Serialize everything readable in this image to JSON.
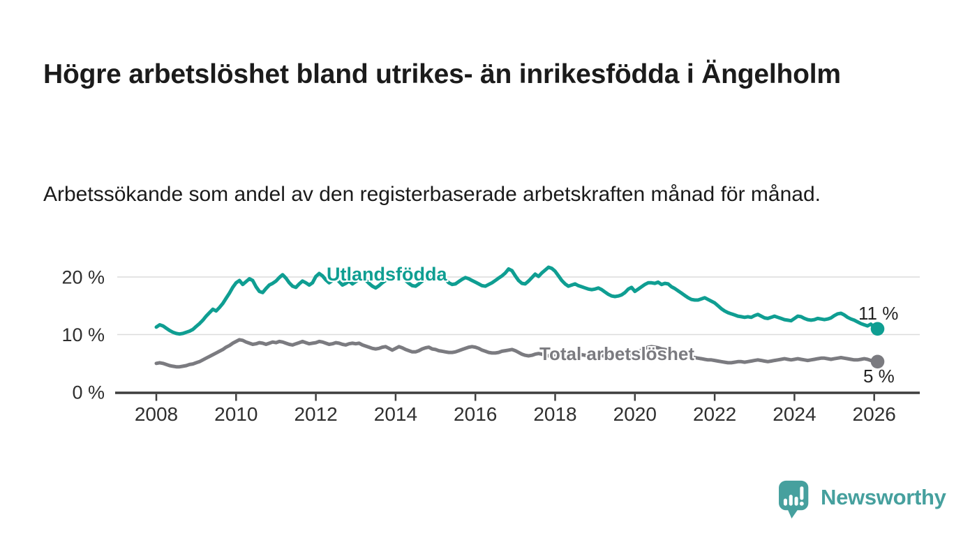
{
  "header": {
    "title": "Högre arbetslöshet bland utrikes- än inrikesfödda i Ängelholm",
    "subtitle": "Arbetssökande som andel av den registerbaserade arbetskraften månad för månad."
  },
  "footer": {
    "brand": "Newsworthy"
  },
  "colors": {
    "accent_teal": "#0f9e92",
    "series_gray": "#7b7b80",
    "logo_teal": "#46a09e",
    "title_text": "#1b1b1b",
    "axis": "#3d3d3d",
    "grid": "#dcdcdc",
    "tick_text": "#2f2f2f"
  },
  "chart_data": {
    "type": "line",
    "title": "Högre arbetslöshet bland utrikes- än inrikesfödda i Ängelholm",
    "subtitle": "Arbetssökande som andel av den registerbaserade arbetskraften månad för månad.",
    "x_unit": "month",
    "start": "2008-01",
    "end": "2026-02",
    "xlim": [
      2008,
      2026.17
    ],
    "ylim": [
      0,
      22.5
    ],
    "grid": "horizontal",
    "legend": "inline-labels",
    "x_ticks": [
      "2008",
      "2010",
      "2012",
      "2014",
      "2016",
      "2018",
      "2020",
      "2022",
      "2024",
      "2026"
    ],
    "y_ticks": [
      {
        "label": "0 %",
        "value": 0
      },
      {
        "label": "10 %",
        "value": 10
      },
      {
        "label": "20 %",
        "value": 20
      }
    ],
    "colors": {
      "grid": "#dcdcdc",
      "axis": "#3d3d3d",
      "tick_text": "#2f2f2f",
      "value_label_text": "#232323"
    },
    "series": [
      {
        "id": "utlandsfodda",
        "name": "Utlandsfödda",
        "color": "#0f9e92",
        "end_label": "11 %",
        "end_value": 11,
        "values": [
          11.3,
          11.7,
          11.5,
          11.1,
          10.7,
          10.4,
          10.2,
          10.1,
          10.2,
          10.4,
          10.6,
          10.9,
          11.4,
          11.9,
          12.5,
          13.2,
          13.8,
          14.4,
          14.1,
          14.7,
          15.4,
          16.3,
          17.2,
          18.2,
          19.0,
          19.4,
          18.7,
          19.2,
          19.7,
          19.4,
          18.3,
          17.5,
          17.3,
          18.0,
          18.6,
          18.9,
          19.3,
          19.9,
          20.4,
          19.8,
          19.0,
          18.4,
          18.2,
          18.8,
          19.3,
          19.0,
          18.6,
          19.0,
          20.1,
          20.6,
          20.2,
          19.5,
          19.0,
          19.4,
          19.8,
          19.2,
          18.6,
          18.9,
          19.3,
          18.8,
          19.2,
          19.6,
          20.0,
          19.5,
          18.9,
          18.4,
          18.1,
          18.5,
          19.0,
          19.4,
          19.8,
          19.5,
          19.8,
          20.2,
          19.9,
          19.4,
          18.9,
          18.5,
          18.4,
          18.8,
          19.3,
          19.7,
          20.1,
          19.8,
          20.0,
          20.4,
          20.1,
          19.6,
          19.0,
          18.7,
          18.8,
          19.2,
          19.6,
          19.9,
          19.7,
          19.4,
          19.1,
          18.8,
          18.5,
          18.4,
          18.7,
          19.0,
          19.4,
          19.8,
          20.2,
          20.7,
          21.4,
          21.1,
          20.2,
          19.4,
          18.9,
          18.8,
          19.3,
          19.9,
          20.5,
          20.1,
          20.7,
          21.2,
          21.7,
          21.5,
          21.0,
          20.2,
          19.4,
          18.8,
          18.4,
          18.6,
          18.8,
          18.5,
          18.3,
          18.1,
          17.9,
          17.8,
          17.9,
          18.1,
          17.8,
          17.4,
          17.0,
          16.7,
          16.6,
          16.7,
          16.9,
          17.3,
          17.9,
          18.2,
          17.5,
          17.9,
          18.3,
          18.7,
          19.0,
          19.0,
          18.9,
          19.1,
          18.7,
          18.9,
          18.8,
          18.3,
          18.0,
          17.6,
          17.2,
          16.8,
          16.4,
          16.1,
          16.0,
          16.0,
          16.2,
          16.4,
          16.1,
          15.8,
          15.5,
          15.0,
          14.5,
          14.1,
          13.8,
          13.6,
          13.4,
          13.2,
          13.1,
          13.0,
          13.1,
          13.0,
          13.3,
          13.5,
          13.2,
          12.9,
          12.8,
          13.0,
          13.2,
          13.0,
          12.8,
          12.6,
          12.5,
          12.4,
          12.8,
          13.2,
          13.1,
          12.8,
          12.6,
          12.5,
          12.6,
          12.8,
          12.7,
          12.6,
          12.7,
          12.9,
          13.3,
          13.6,
          13.7,
          13.4,
          13.0,
          12.7,
          12.5,
          12.2,
          11.9,
          11.7,
          11.5,
          11.8,
          11.3,
          11.0
        ]
      },
      {
        "id": "total",
        "name": "Total arbetslöshet",
        "color": "#7b7b80",
        "end_label": "5 %",
        "end_value": 5,
        "values": [
          5.0,
          5.1,
          5.0,
          4.8,
          4.6,
          4.5,
          4.4,
          4.4,
          4.5,
          4.6,
          4.8,
          4.9,
          5.1,
          5.3,
          5.6,
          5.9,
          6.2,
          6.5,
          6.8,
          7.1,
          7.4,
          7.8,
          8.1,
          8.5,
          8.8,
          9.1,
          9.0,
          8.7,
          8.5,
          8.3,
          8.4,
          8.6,
          8.5,
          8.3,
          8.5,
          8.7,
          8.6,
          8.8,
          8.7,
          8.5,
          8.3,
          8.2,
          8.4,
          8.6,
          8.8,
          8.6,
          8.4,
          8.5,
          8.6,
          8.8,
          8.7,
          8.5,
          8.3,
          8.4,
          8.6,
          8.5,
          8.3,
          8.2,
          8.4,
          8.5,
          8.4,
          8.5,
          8.2,
          8.0,
          7.8,
          7.6,
          7.5,
          7.6,
          7.8,
          7.9,
          7.6,
          7.3,
          7.6,
          7.9,
          7.7,
          7.4,
          7.2,
          7.0,
          7.0,
          7.2,
          7.5,
          7.7,
          7.8,
          7.5,
          7.4,
          7.2,
          7.1,
          7.0,
          6.9,
          6.9,
          7.0,
          7.2,
          7.4,
          7.6,
          7.8,
          7.9,
          7.8,
          7.6,
          7.3,
          7.1,
          6.9,
          6.8,
          6.8,
          6.9,
          7.1,
          7.2,
          7.3,
          7.4,
          7.2,
          6.9,
          6.6,
          6.4,
          6.3,
          6.4,
          6.6,
          6.7,
          6.6,
          6.4,
          6.3,
          6.4,
          6.5,
          6.7,
          6.6,
          6.4,
          6.2,
          6.1,
          6.2,
          6.4,
          6.5,
          6.4,
          6.3,
          6.4,
          6.5,
          6.6,
          6.4,
          6.2,
          6.1,
          6.0,
          6.1,
          6.2,
          6.3,
          6.4,
          6.5,
          6.6,
          6.8,
          7.0,
          7.3,
          7.6,
          7.8,
          7.9,
          7.8,
          7.7,
          7.5,
          7.4,
          7.3,
          7.2,
          7.0,
          6.9,
          6.7,
          6.5,
          6.3,
          6.1,
          6.0,
          5.9,
          5.8,
          5.7,
          5.6,
          5.6,
          5.5,
          5.4,
          5.3,
          5.2,
          5.1,
          5.1,
          5.2,
          5.3,
          5.3,
          5.2,
          5.3,
          5.4,
          5.5,
          5.6,
          5.5,
          5.4,
          5.3,
          5.4,
          5.5,
          5.6,
          5.7,
          5.8,
          5.7,
          5.6,
          5.7,
          5.8,
          5.7,
          5.6,
          5.5,
          5.6,
          5.7,
          5.8,
          5.9,
          5.9,
          5.8,
          5.7,
          5.8,
          5.9,
          6.0,
          5.9,
          5.8,
          5.7,
          5.6,
          5.6,
          5.7,
          5.8,
          5.7,
          5.5,
          5.4,
          5.3
        ]
      }
    ]
  }
}
